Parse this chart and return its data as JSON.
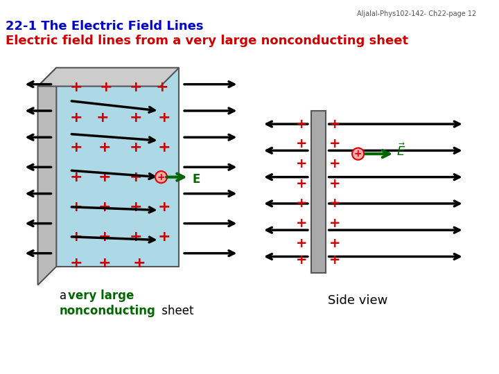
{
  "title1": "22-1 The Electric Field Lines",
  "title2": "Electric field lines from a very large nonconducting sheet",
  "title1_color": "#0000CC",
  "title2_color": "#CC0000",
  "watermark": "Aljalal-Phys102-142- Ch22-page 12",
  "bg_color": "#ffffff",
  "sheet_left_label": "a very large\nnonconducting sheet",
  "side_view_label": "Side view"
}
